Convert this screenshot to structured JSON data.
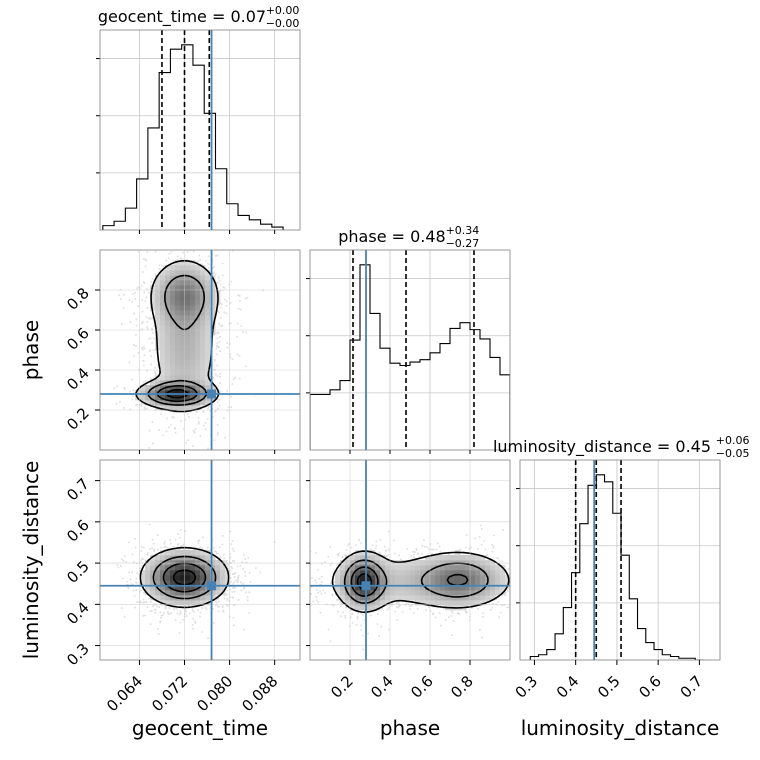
{
  "chart_data": {
    "type": "corner",
    "parameters": [
      "geocent_time",
      "phase",
      "luminosity_distance"
    ],
    "truths": {
      "geocent_time": 0.0768,
      "phase": 0.28,
      "luminosity_distance": 0.445
    },
    "truth_color": "#4682b4",
    "grid": true,
    "marginals": [
      {
        "parameter": "geocent_time",
        "title_main": "geocent_time = 0.07",
        "title_plus": "+0.00",
        "title_minus": "−0.00",
        "median": 0.072,
        "quantiles": [
          0.068,
          0.072,
          0.0764
        ],
        "range": [
          0.057,
          0.0925
        ],
        "bin_edges": [
          0.0575,
          0.0595,
          0.0615,
          0.0635,
          0.0655,
          0.0675,
          0.0695,
          0.0715,
          0.0735,
          0.0755,
          0.0775,
          0.0795,
          0.0815,
          0.0835,
          0.0855,
          0.0875,
          0.0895
        ],
        "counts": [
          3,
          6,
          15,
          35,
          70,
          108,
          124,
          127,
          113,
          80,
          42,
          18,
          10,
          7,
          4,
          2
        ]
      },
      {
        "parameter": "phase",
        "title_main": "phase = 0.48",
        "title_plus": "+0.34",
        "title_minus": "−0.27",
        "median": 0.48,
        "quantiles": [
          0.215,
          0.48,
          0.82
        ],
        "range": [
          0.0,
          1.0
        ],
        "bin_edges": [
          0.0,
          0.05,
          0.1,
          0.15,
          0.2,
          0.25,
          0.3,
          0.35,
          0.4,
          0.45,
          0.5,
          0.55,
          0.6,
          0.65,
          0.7,
          0.75,
          0.8,
          0.85,
          0.9,
          0.95,
          1.0
        ],
        "counts": [
          48,
          48,
          52,
          60,
          95,
          160,
          118,
          88,
          75,
          73,
          76,
          78,
          84,
          92,
          105,
          110,
          104,
          96,
          80,
          65
        ]
      },
      {
        "parameter": "luminosity_distance",
        "title_main": "luminosity_distance = 0.45",
        "title_plus": "+0.06",
        "title_minus": "−0.05",
        "median": 0.45,
        "quantiles": [
          0.4,
          0.45,
          0.51
        ],
        "range": [
          0.265,
          0.75
        ],
        "bin_edges": [
          0.29,
          0.31,
          0.33,
          0.35,
          0.37,
          0.39,
          0.41,
          0.43,
          0.45,
          0.47,
          0.49,
          0.51,
          0.53,
          0.55,
          0.57,
          0.59,
          0.61,
          0.63,
          0.65,
          0.67,
          0.69,
          0.71
        ],
        "counts": [
          2,
          3,
          6,
          15,
          30,
          50,
          78,
          100,
          106,
          102,
          84,
          60,
          35,
          18,
          10,
          6,
          3,
          2,
          1,
          1,
          0
        ]
      }
    ],
    "axes": {
      "geocent_time": {
        "label": "geocent_time",
        "ticks": [
          0.064,
          0.072,
          0.08,
          0.088
        ],
        "tick_labels": [
          "0.064",
          "0.072",
          "0.080",
          "0.088"
        ]
      },
      "phase": {
        "label": "phase",
        "ticks": [
          0.2,
          0.4,
          0.6,
          0.8
        ],
        "tick_labels": [
          "0.2",
          "0.4",
          "0.6",
          "0.8"
        ]
      },
      "luminosity_distance": {
        "label": "luminosity_distance",
        "ticks": [
          0.3,
          0.4,
          0.5,
          0.6,
          0.7
        ],
        "tick_labels": [
          "0.3",
          "0.4",
          "0.5",
          "0.6",
          "0.7"
        ]
      }
    },
    "pairs": [
      {
        "x": "geocent_time",
        "y": "phase",
        "modes": [
          {
            "cx": 0.0705,
            "cy": 0.28,
            "sx": 0.0035,
            "sy": 0.035,
            "w": 1.0
          },
          {
            "cx": 0.072,
            "cy": 0.78,
            "sx": 0.0032,
            "sy": 0.09,
            "w": 0.55
          },
          {
            "cx": 0.072,
            "cy": 0.52,
            "sx": 0.0035,
            "sy": 0.2,
            "w": 0.35
          }
        ]
      },
      {
        "x": "geocent_time",
        "y": "luminosity_distance",
        "modes": [
          {
            "cx": 0.072,
            "cy": 0.465,
            "sx": 0.0038,
            "sy": 0.035,
            "w": 1.0
          }
        ]
      },
      {
        "x": "phase",
        "y": "luminosity_distance",
        "modes": [
          {
            "cx": 0.27,
            "cy": 0.455,
            "sx": 0.06,
            "sy": 0.035,
            "w": 1.0
          },
          {
            "cx": 0.75,
            "cy": 0.46,
            "sx": 0.12,
            "sy": 0.035,
            "w": 0.6
          },
          {
            "cx": 0.5,
            "cy": 0.455,
            "sx": 0.3,
            "sy": 0.04,
            "w": 0.25
          }
        ]
      }
    ]
  }
}
